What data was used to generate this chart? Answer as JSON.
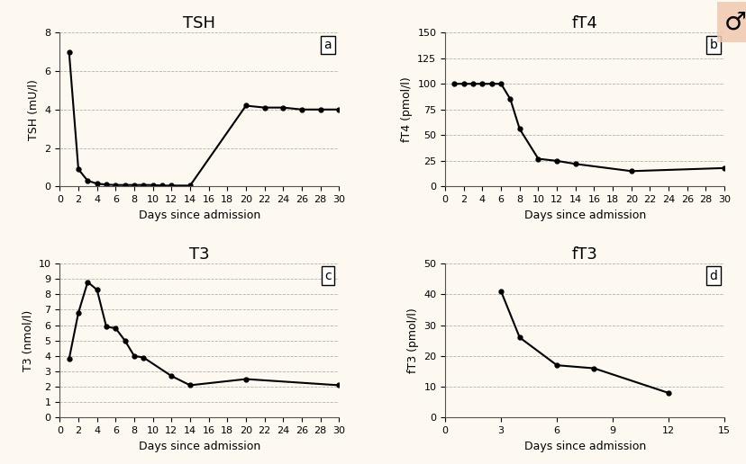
{
  "background_color": "#fdf8f0",
  "title_fontsize": 13,
  "label_fontsize": 9,
  "tick_fontsize": 8,
  "tsh": {
    "title": "TSH",
    "ylabel": "TSH (mU/l)",
    "xlabel": "Days since admission",
    "x": [
      1,
      2,
      3,
      4,
      5,
      6,
      7,
      8,
      9,
      10,
      11,
      12,
      14,
      20,
      22,
      24,
      26,
      28,
      30
    ],
    "y": [
      7.0,
      0.9,
      0.3,
      0.15,
      0.1,
      0.08,
      0.08,
      0.08,
      0.08,
      0.08,
      0.05,
      0.05,
      0.05,
      4.2,
      4.1,
      4.1,
      4.0,
      4.0,
      4.0
    ],
    "ylim": [
      0,
      8
    ],
    "xlim": [
      0,
      30
    ],
    "yticks": [
      0,
      2,
      4,
      6,
      8
    ],
    "xticks": [
      0,
      2,
      4,
      6,
      8,
      10,
      12,
      14,
      16,
      18,
      20,
      22,
      24,
      26,
      28,
      30
    ],
    "label": "a"
  },
  "ft4": {
    "title": "fT4",
    "ylabel": "fT4 (pmol/l)",
    "xlabel": "Days since admission",
    "x": [
      1,
      2,
      3,
      4,
      5,
      6,
      7,
      8,
      10,
      12,
      14,
      20,
      30
    ],
    "y": [
      100,
      100,
      100,
      100,
      100,
      100,
      85,
      56,
      27,
      25,
      22,
      15,
      18
    ],
    "ylim": [
      0,
      150
    ],
    "xlim": [
      0,
      30
    ],
    "yticks": [
      0,
      25,
      50,
      75,
      100,
      125,
      150
    ],
    "xticks": [
      0,
      2,
      4,
      6,
      8,
      10,
      12,
      14,
      16,
      18,
      20,
      22,
      24,
      26,
      28,
      30
    ],
    "label": "b"
  },
  "t3": {
    "title": "T3",
    "ylabel": "T3 (nmol/l)",
    "xlabel": "Days since admission",
    "x": [
      1,
      2,
      3,
      4,
      5,
      6,
      7,
      8,
      9,
      12,
      14,
      20,
      30
    ],
    "y": [
      3.8,
      6.8,
      8.8,
      8.3,
      5.9,
      5.8,
      5.0,
      4.0,
      3.9,
      2.7,
      2.1,
      2.5,
      2.1
    ],
    "ylim": [
      0,
      10
    ],
    "xlim": [
      0,
      30
    ],
    "yticks": [
      0,
      1,
      2,
      3,
      4,
      5,
      6,
      7,
      8,
      9,
      10
    ],
    "xticks": [
      0,
      2,
      4,
      6,
      8,
      10,
      12,
      14,
      16,
      18,
      20,
      22,
      24,
      26,
      28,
      30
    ],
    "label": "c"
  },
  "ft3": {
    "title": "fT3",
    "ylabel": "fT3 (pmol/l)",
    "xlabel": "Days since admission",
    "x": [
      3,
      4,
      6,
      8,
      12
    ],
    "y": [
      41,
      26,
      17,
      16,
      8
    ],
    "ylim": [
      0,
      50
    ],
    "xlim": [
      0,
      15
    ],
    "yticks": [
      0,
      10,
      20,
      30,
      40,
      50
    ],
    "xticks": [
      0,
      3,
      6,
      9,
      12,
      15
    ],
    "label": "d"
  }
}
